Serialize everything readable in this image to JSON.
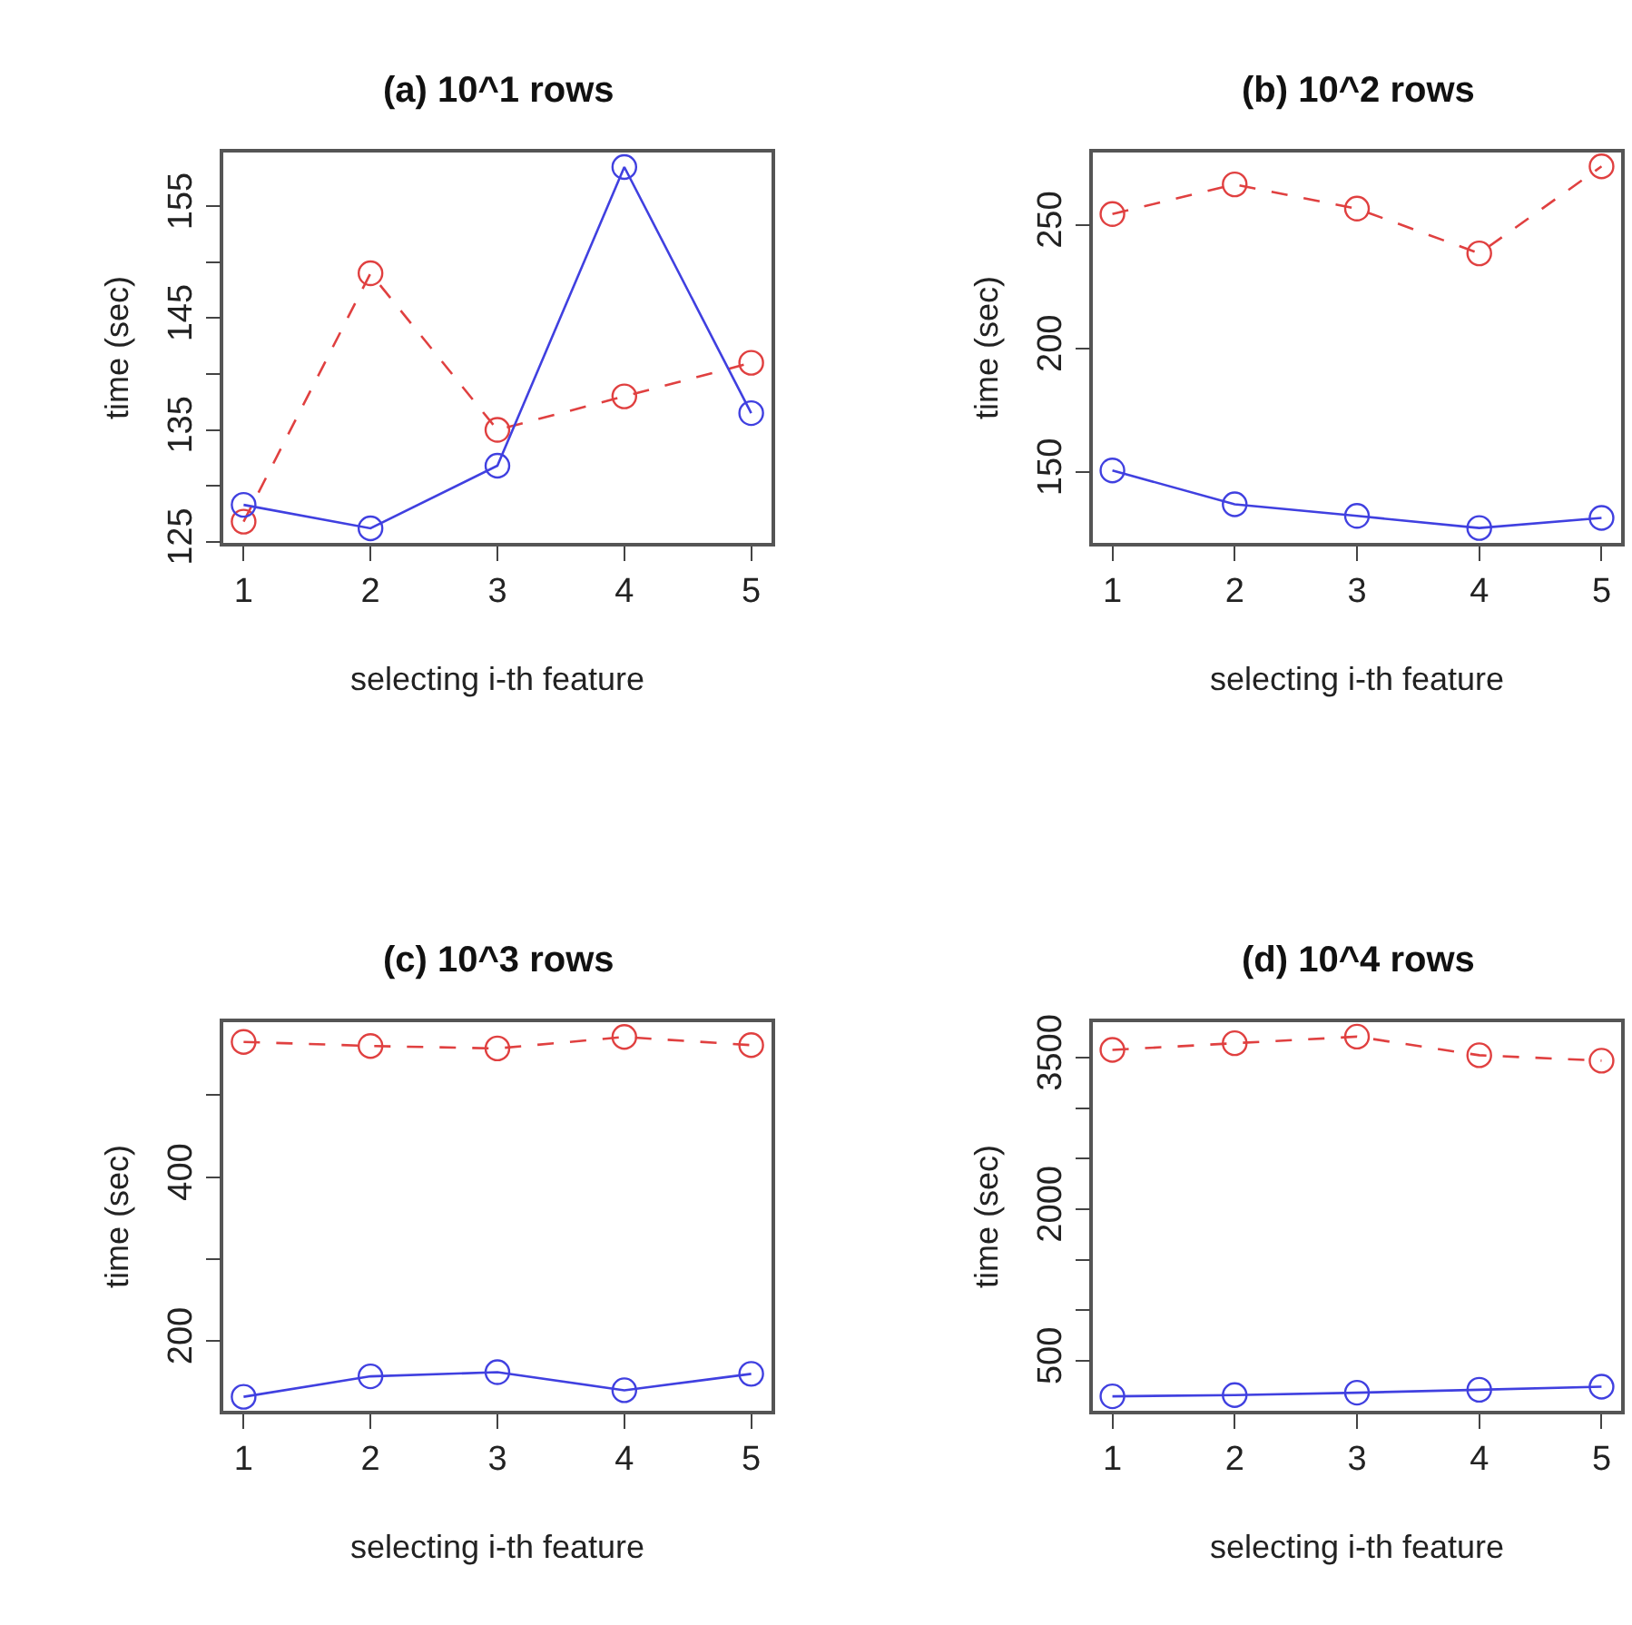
{
  "chart_data": [
    {
      "type": "line",
      "title": "(a) 10^1 rows",
      "xlabel": "selecting i-th feature",
      "ylabel": "time (sec)",
      "x": [
        1,
        2,
        3,
        4,
        5
      ],
      "xlim": [
        0.84,
        5.16
      ],
      "xticks": [
        1,
        2,
        3,
        4,
        5
      ],
      "ylim": [
        124.9,
        159.8
      ],
      "yticks": [
        125,
        {
          "value": 130,
          "label": null
        },
        135,
        {
          "value": 140,
          "label": null
        },
        145,
        {
          "value": 150,
          "label": null
        },
        155
      ],
      "marker": "circle",
      "series": [
        {
          "color": "#e04040",
          "line_style": "dashed",
          "values": [
            126.8,
            149.0,
            135.0,
            138.0,
            141.0
          ]
        },
        {
          "color": "#4040e0",
          "line_style": "solid",
          "values": [
            128.3,
            126.2,
            131.8,
            158.5,
            136.5
          ]
        }
      ]
    },
    {
      "type": "line",
      "title": "(b) 10^2 rows",
      "xlabel": "selecting i-th feature",
      "ylabel": "time (sec)",
      "x": [
        1,
        2,
        3,
        4,
        5
      ],
      "xlim": [
        0.84,
        5.16
      ],
      "xticks": [
        1,
        2,
        3,
        4,
        5
      ],
      "ylim": [
        121.4,
        279.3
      ],
      "yticks": [
        150,
        200,
        250
      ],
      "marker": "circle",
      "series": [
        {
          "color": "#e04040",
          "line_style": "dashed",
          "values": [
            254.4,
            266.4,
            256.6,
            238.5,
            273.7
          ]
        },
        {
          "color": "#4040e0",
          "line_style": "solid",
          "values": [
            150.7,
            137.0,
            132.3,
            127.4,
            131.5
          ]
        }
      ]
    },
    {
      "type": "line",
      "title": "(c) 10^3 rows",
      "xlabel": "selecting i-th feature",
      "ylabel": "time (sec)",
      "x": [
        1,
        2,
        3,
        4,
        5
      ],
      "xlim": [
        0.84,
        5.16
      ],
      "xticks": [
        1,
        2,
        3,
        4,
        5
      ],
      "ylim": [
        115,
        589
      ],
      "yticks": [
        200,
        {
          "value": 300,
          "label": null
        },
        400,
        {
          "value": 500,
          "label": null
        }
      ],
      "marker": "circle",
      "series": [
        {
          "color": "#e04040",
          "line_style": "dashed",
          "values": [
            565,
            560,
            557,
            571,
            561
          ]
        },
        {
          "color": "#4040e0",
          "line_style": "solid",
          "values": [
            132,
            157,
            162,
            140,
            160
          ]
        }
      ]
    },
    {
      "type": "line",
      "title": "(d) 10^4 rows",
      "xlabel": "selecting i-th feature",
      "ylabel": "time (sec)",
      "x": [
        1,
        2,
        3,
        4,
        5
      ],
      "xlim": [
        0.84,
        5.16
      ],
      "xticks": [
        1,
        2,
        3,
        4,
        5
      ],
      "ylim": [
        6,
        3851
      ],
      "yticks": [
        500,
        {
          "value": 1000,
          "label": null
        },
        {
          "value": 1500,
          "label": null
        },
        2000,
        {
          "value": 2500,
          "label": null
        },
        {
          "value": 3000,
          "label": null
        },
        3500
      ],
      "marker": "circle",
      "series": [
        {
          "color": "#e04040",
          "line_style": "dashed",
          "values": [
            3577,
            3643,
            3708,
            3524,
            3470
          ]
        },
        {
          "color": "#4040e0",
          "line_style": "solid",
          "values": [
            149,
            161,
            185,
            214,
            244
          ]
        }
      ]
    }
  ]
}
